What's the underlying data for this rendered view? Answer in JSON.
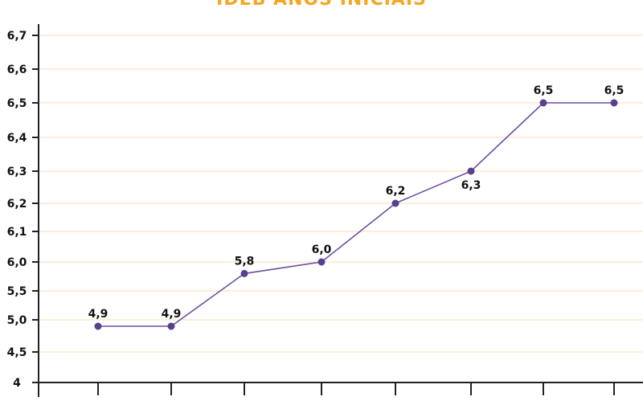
{
  "chart_data": {
    "type": "line",
    "title": "IDEB ANOS INICIAIS",
    "xlabel": "",
    "ylabel": "",
    "grid": true,
    "legend": "none",
    "y_ticks": [
      "4",
      "4,5",
      "5,0",
      "5,5",
      "6,0",
      "6,1",
      "6,2",
      "6,3",
      "6,4",
      "6,5",
      "6,6",
      "6,7"
    ],
    "series": [
      {
        "values": [
          4.9,
          4.9,
          5.8,
          6.0,
          6.2,
          6.3,
          6.5,
          6.5
        ],
        "labels": [
          "4,9",
          "4,9",
          "5,8",
          "6,0",
          "6,2",
          "6,3",
          "6,5",
          "6,5"
        ]
      }
    ],
    "colors": {
      "line": "#6b4fa0",
      "marker": "#5b3f8f",
      "grid": "#fce3c4",
      "axis": "#222222",
      "title": "#f5a623",
      "text": "#111111"
    }
  }
}
